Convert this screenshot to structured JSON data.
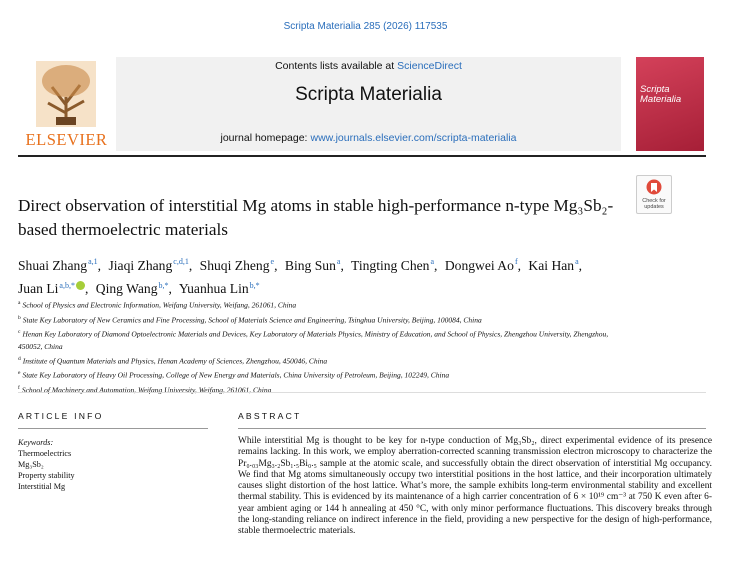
{
  "header": {
    "citation": "Scripta Materialia 285 (2026) 117535",
    "publisher": "ELSEVIER",
    "contents_prefix": "Contents lists available at",
    "contents_link": "ScienceDirect",
    "journal": "Scripta Materialia",
    "homepage_prefix": "journal homepage:",
    "homepage_url": "www.journals.elsevier.com/scripta-materialia",
    "cover_title": "Scripta Materialia",
    "check_updates": "Check for updates"
  },
  "article": {
    "title": "Direct observation of interstitial Mg atoms in stable high-performance n-type Mg₃Sb₂-based thermoelectric materials",
    "authors": [
      {
        "name": "Shuai Zhang",
        "affil": "a,1"
      },
      {
        "name": "Jiaqi Zhang",
        "affil": "c,d,1"
      },
      {
        "name": "Shuqi Zheng",
        "affil": "e"
      },
      {
        "name": "Bing Sun",
        "affil": "a"
      },
      {
        "name": "Tingting Chen",
        "affil": "a"
      },
      {
        "name": "Dongwei Ao",
        "affil": "f"
      },
      {
        "name": "Kai Han",
        "affil": "a"
      },
      {
        "name": "Juan Li",
        "affil": "a,b,*",
        "orcid": true
      },
      {
        "name": "Qing Wang",
        "affil": "b,*"
      },
      {
        "name": "Yuanhua Lin",
        "affil": "b,*"
      }
    ],
    "affiliations": [
      {
        "label": "a",
        "text": "School of Physics and Electronic Information, Weifang University, Weifang, 261061, China"
      },
      {
        "label": "b",
        "text": "State Key Laboratory of New Ceramics and Fine Processing, School of Materials Science and Engineering, Tsinghua University, Beijing, 100084, China"
      },
      {
        "label": "c",
        "text": "Henan Key Laboratory of Diamond Optoelectronic Materials and Devices, Key Laboratory of Materials Physics, Ministry of Education, and School of Physics, Zhengzhou University, Zhengzhou, 450052, China"
      },
      {
        "label": "d",
        "text": "Institute of Quantum Materials and Physics, Henan Academy of Sciences, Zhengzhou, 450046, China"
      },
      {
        "label": "e",
        "text": "State Key Laboratory of Heavy Oil Processing, College of New Energy and Materials, China University of Petroleum, Beijing, 102249, China"
      },
      {
        "label": "f",
        "text": "School of Machinery and Automation, Weifang University, Weifang, 261061, China"
      }
    ],
    "article_info_heading": "ARTICLE INFO",
    "abstract_heading": "ABSTRACT",
    "keywords_heading": "Keywords:",
    "keywords": [
      "Thermoelectrics",
      "Mg₃Sb₂",
      "Property stability",
      "Interstitial Mg"
    ],
    "abstract": "While interstitial Mg is thought to be key for n-type conduction of Mg₃Sb₂, direct experimental evidence of its presence remains lacking. In this work, we employ aberration-corrected scanning transmission electron microscopy to characterize the Pr₀.₀₃Mg₃.₂Sb₁.₅Bi₀.₅ sample at the atomic scale, and successfully obtain the direct observation of interstitial Mg occupancy. We find that Mg atoms simultaneously occupy two interstitial positions in the host lattice, and their incorporation ultimately causes slight distortion of the host lattice. What’s more, the sample exhibits long-term environmental stability and excellent thermal stability. This is evidenced by its maintenance of a high carrier concentration of 6 × 10¹⁹ cm⁻³ at 750 K even after 6-year ambient aging or 144 h annealing at 450 °C, with only minor performance fluctuations. This discovery breaks through the long-standing reliance on indirect inference in the field, providing a new perspective for the design of high-performance, stable thermoelectric materials."
  }
}
